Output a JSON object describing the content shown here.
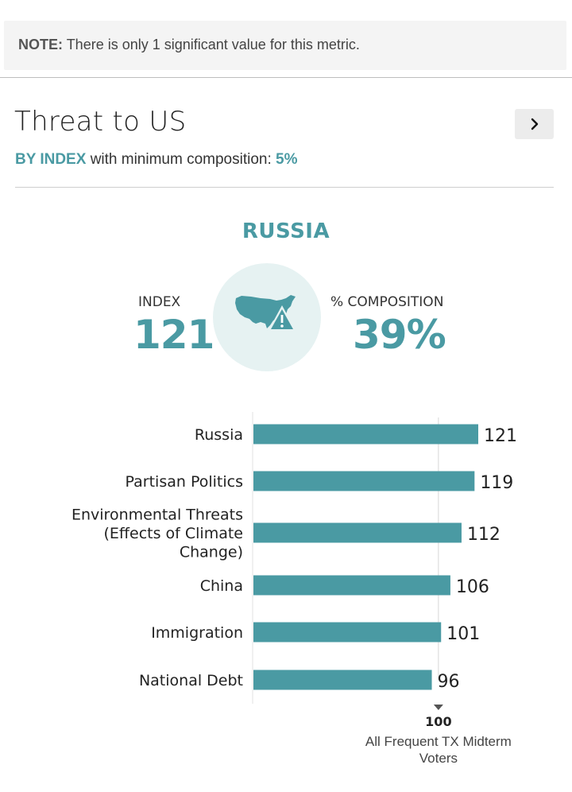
{
  "note": {
    "label": "NOTE:",
    "text": "There is only 1 significant value for this metric."
  },
  "header": {
    "title": "Threat to US",
    "next_icon": "chevron-right-icon",
    "subtitle": {
      "mode": "BY INDEX",
      "text": "with minimum composition:",
      "value": "5%"
    }
  },
  "highlight": {
    "name": "RUSSIA",
    "icon": "us-map-warning-icon",
    "index_label": "INDEX",
    "index_value": "121",
    "composition_label": "% COMPOSITION",
    "composition_value": "39%"
  },
  "colors": {
    "accent": "#4a9aa3",
    "bar": "#4a9aa3",
    "circle": "#e6f2f2"
  },
  "chart_data": {
    "type": "bar",
    "orientation": "horizontal",
    "categories": [
      [
        "Russia"
      ],
      [
        "Partisan Politics"
      ],
      [
        "Environmental Threats",
        "(Effects of Climate",
        "Change)"
      ],
      [
        "China"
      ],
      [
        "Immigration"
      ],
      [
        "National Debt"
      ]
    ],
    "values": [
      121,
      119,
      112,
      106,
      101,
      96
    ],
    "value_labels": [
      "121",
      "119",
      "112",
      "106",
      "101",
      "96"
    ],
    "reference": {
      "value": 100,
      "value_label": "100",
      "label_lines": [
        "All Frequent TX Midterm",
        "Voters"
      ]
    }
  }
}
